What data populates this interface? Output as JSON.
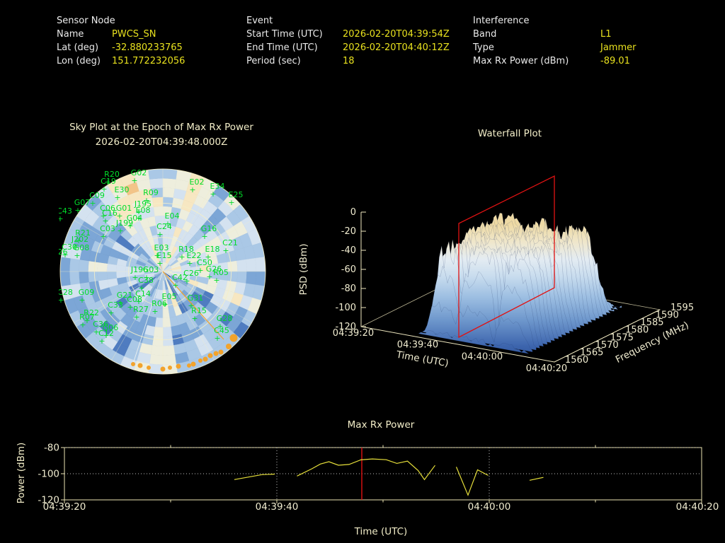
{
  "header": {
    "sensor": {
      "title": "Sensor Node",
      "rows": [
        {
          "label": "Name",
          "value": "PWCS_SN"
        },
        {
          "label": "Lat (deg)",
          "value": "-32.880233765"
        },
        {
          "label": "Lon (deg)",
          "value": "151.772232056"
        }
      ]
    },
    "event": {
      "title": "Event",
      "rows": [
        {
          "label": "Start Time (UTC)",
          "value": "2026-02-20T04:39:54Z"
        },
        {
          "label": "End Time (UTC)",
          "value": "2026-02-20T04:40:12Z"
        },
        {
          "label": "Period (sec)",
          "value": "18"
        }
      ]
    },
    "interference": {
      "title": "Interference",
      "rows": [
        {
          "label": "Band",
          "value": "L1"
        },
        {
          "label": "Type",
          "value": "Jammer"
        },
        {
          "label": "Max Rx Power (dBm)",
          "value": "-89.01"
        }
      ]
    }
  },
  "chart_data": [
    {
      "id": "sky_plot",
      "type": "heatmap",
      "projection": "polar",
      "title": "Sky Plot at the Epoch of Max Rx Power",
      "subtitle": "2026-02-20T04:39:48.000Z",
      "colormap": "blue-cream-orange",
      "palette": [
        "#1f3f8e",
        "#2f5aa8",
        "#4f7cc0",
        "#7ca6d6",
        "#aac8e6",
        "#d4e2f0",
        "#eeeedd",
        "#f7e7c2",
        "#f3c488",
        "#eda254"
      ],
      "grid_color": "#f4eec8",
      "label_color": "#00dd2a",
      "elevation_rings_deg": [
        30,
        60
      ],
      "azimuth_spoke_step_deg": 30,
      "noise_seed": 20260220,
      "az_cells": 44,
      "el_cells": 11,
      "satellites": [
        [
          "R20",
          75,
          9
        ],
        [
          "G02",
          113,
          7
        ],
        [
          "C19",
          70,
          19
        ],
        [
          "E30",
          89,
          31
        ],
        [
          "C09",
          54,
          39
        ],
        [
          "R09",
          130,
          35
        ],
        [
          "G07",
          33,
          49
        ],
        [
          "J195",
          119,
          51
        ],
        [
          "C43",
          8,
          61
        ],
        [
          "C06",
          69,
          57
        ],
        [
          "G01",
          92,
          57
        ],
        [
          "E08",
          119,
          60
        ],
        [
          "C16",
          72,
          64
        ],
        [
          "G04",
          107,
          71
        ],
        [
          "J199",
          93,
          78
        ],
        [
          "C03",
          69,
          86
        ],
        [
          "C24",
          149,
          83
        ],
        [
          "R21",
          34,
          92
        ],
        [
          "J202",
          30,
          101
        ],
        [
          "C30",
          15,
          112
        ],
        [
          "G08",
          32,
          113
        ],
        [
          "E26",
          2,
          119
        ],
        [
          "E02",
          195,
          20
        ],
        [
          "E34",
          224,
          26
        ],
        [
          "E25",
          250,
          38
        ],
        [
          "E04",
          160,
          68
        ],
        [
          "G16",
          212,
          86
        ],
        [
          "C21",
          242,
          106
        ],
        [
          "R18",
          180,
          115
        ],
        [
          "E03",
          145,
          113
        ],
        [
          "E15",
          149,
          124
        ],
        [
          "E18",
          217,
          115
        ],
        [
          "E22",
          191,
          124
        ],
        [
          "C50",
          206,
          134
        ],
        [
          "G26",
          219,
          143
        ],
        [
          "C26",
          187,
          149
        ],
        [
          "R05",
          229,
          148
        ],
        [
          "C42",
          171,
          155
        ],
        [
          "E05",
          156,
          182
        ],
        [
          "G31",
          193,
          184
        ],
        [
          "R06",
          142,
          192
        ],
        [
          "R15",
          198,
          202
        ],
        [
          "G28",
          234,
          213
        ],
        [
          "C45",
          230,
          230
        ],
        [
          "J196",
          114,
          144
        ],
        [
          "G03",
          130,
          144
        ],
        [
          "C38",
          123,
          159
        ],
        [
          "C28",
          9,
          176
        ],
        [
          "G09",
          39,
          176
        ],
        [
          "G21",
          93,
          180
        ],
        [
          "C14",
          119,
          178
        ],
        [
          "C08",
          107,
          186
        ],
        [
          "C33",
          80,
          194
        ],
        [
          "R27",
          116,
          200
        ],
        [
          "R22",
          46,
          205
        ],
        [
          "R07",
          40,
          211
        ],
        [
          "C36",
          59,
          221
        ],
        [
          "G06",
          73,
          226
        ],
        [
          "C12",
          67,
          234
        ]
      ],
      "jammer_track": {
        "color": "#f2a32c",
        "aux_line_color": "#faf8f0",
        "line_from_center_to": [
          233,
          243
        ],
        "aux_line_to": [
          105,
          277
        ],
        "dots": [
          [
            247,
            241,
            5.5
          ],
          [
            240,
            253,
            4
          ],
          [
            229,
            261,
            3.5
          ],
          [
            222,
            263,
            3.5
          ],
          [
            214,
            266,
            3.5
          ],
          [
            207,
            271,
            3.5
          ],
          [
            200,
            273,
            3
          ],
          [
            190,
            278,
            3.5
          ],
          [
            184,
            280,
            3
          ],
          [
            169,
            281,
            3.5
          ],
          [
            157,
            283,
            3
          ],
          [
            147,
            285,
            3.5
          ],
          [
            127,
            283,
            3
          ],
          [
            115,
            280,
            3.5
          ],
          [
            105,
            278,
            3
          ]
        ]
      }
    },
    {
      "id": "waterfall",
      "type": "area",
      "title": "Waterfall Plot",
      "z_label": "PSD (dBm)",
      "z_ticks": [
        0,
        -20,
        -40,
        -60,
        -80,
        -100,
        -120
      ],
      "x_label": "Time (UTC)",
      "x_ticks": [
        "04:39:20",
        "04:39:40",
        "04:40:00",
        "04:40:20"
      ],
      "y_label": "Frequency (MHz)",
      "y_ticks": [
        1560,
        1565,
        1570,
        1575,
        1580,
        1585,
        1590,
        1595
      ],
      "surface_psd_plateau_dbm": -40,
      "psd_range": [
        -120,
        0
      ],
      "epoch_plane": {
        "color": "#e01212",
        "time_utc": "04:39:48"
      },
      "surface_gradient": [
        "#27498c",
        "#3c64ad",
        "#6e97cc",
        "#9dbfe2",
        "#c8dcee",
        "#e4ecf2",
        "#efe7cd",
        "#eedaa4"
      ],
      "noise_seed": 42
    },
    {
      "id": "max_rx_power",
      "type": "line",
      "title": "Max Rx Power",
      "x_label": "Time (UTC)",
      "y_label": "Power (dBm)",
      "y_ticks": [
        -80,
        -100,
        -120
      ],
      "ylim": [
        -120,
        -80
      ],
      "x_ticks": [
        "04:39:20",
        "04:39:40",
        "04:40:00",
        "04:40:20"
      ],
      "x_start_utc": "04:39:20",
      "x_span_sec": 60,
      "dotted_vlines_sec": [
        20,
        40
      ],
      "epoch_vline": {
        "sec": 28,
        "color": "#e01212"
      },
      "line_color": "#e6df3a",
      "points_sec_dbm": [
        [
          16,
          -104.5
        ],
        [
          17.3,
          -102.6
        ],
        [
          18.6,
          -100.7
        ],
        [
          19.8,
          -100.3
        ],
        null,
        [
          21.9,
          -101.8
        ],
        [
          23.3,
          -96.2
        ],
        [
          24.1,
          -92.6
        ],
        [
          24.9,
          -90.8
        ],
        [
          25.8,
          -93.5
        ],
        [
          26.8,
          -92.9
        ],
        [
          27.9,
          -89.4
        ],
        [
          29,
          -88.7
        ],
        [
          30.3,
          -89.3
        ],
        [
          31.3,
          -92.1
        ],
        [
          32.3,
          -90.4
        ],
        [
          33.3,
          -97.5
        ],
        [
          33.9,
          -104.5
        ],
        [
          34.9,
          -93.6
        ],
        null,
        [
          36.9,
          -94.8
        ],
        [
          38,
          -116.4
        ],
        [
          38.9,
          -97
        ],
        [
          39.9,
          -101.3
        ],
        null,
        [
          43.8,
          -105
        ],
        [
          45.1,
          -102.8
        ]
      ]
    }
  ],
  "colors": {
    "value_yellow": "#e8e11e",
    "cream_text": "#f2edc8",
    "spine": "#e9e2ae",
    "grid_dotted": "#c0c0c0"
  }
}
